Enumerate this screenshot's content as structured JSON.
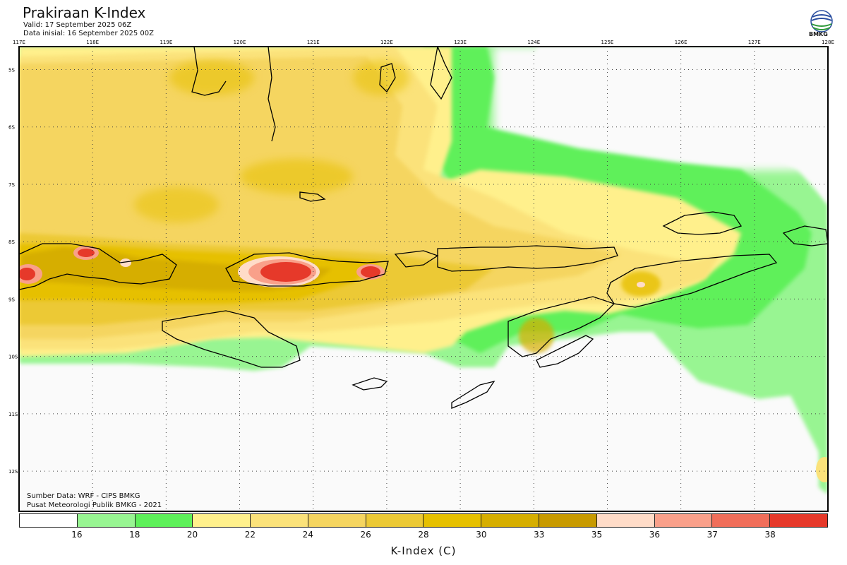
{
  "header": {
    "title": "Prakiraan K-Index",
    "valid": "Valid: 17 September 2025 06Z",
    "init": "Data inisial: 16 September 2025 00Z"
  },
  "logo": {
    "text": "BMKG",
    "icon": "bmkg-logo-icon"
  },
  "map": {
    "lon_ticks": [
      "117E",
      "118E",
      "119E",
      "120E",
      "121E",
      "122E",
      "123E",
      "124E",
      "125E",
      "126E",
      "127E",
      "128E"
    ],
    "lat_ticks": [
      "5S",
      "6S",
      "7S",
      "8S",
      "9S",
      "10S",
      "11S",
      "12S"
    ],
    "lon_range": [
      117,
      128
    ],
    "lat_range": [
      -4.6,
      -12.7
    ],
    "grid": true
  },
  "footer": {
    "source": "Sumber Data: WRF - CIPS BMKG",
    "center": "Pusat Meteorologi Publik BMKG - 2021"
  },
  "colorbar": {
    "colors": [
      "#ffffff",
      "#98f592",
      "#5ef05a",
      "#fff08c",
      "#fbe27a",
      "#f5d560",
      "#ecc935",
      "#e6c000",
      "#d6ae00",
      "#c89a00",
      "#ffdcc8",
      "#f9a08a",
      "#f06e5a",
      "#e6392a"
    ],
    "labels": [
      "16",
      "18",
      "20",
      "22",
      "24",
      "26",
      "28",
      "30",
      "33",
      "35",
      "36",
      "37",
      "38"
    ],
    "unit": "K-Index (C)"
  }
}
